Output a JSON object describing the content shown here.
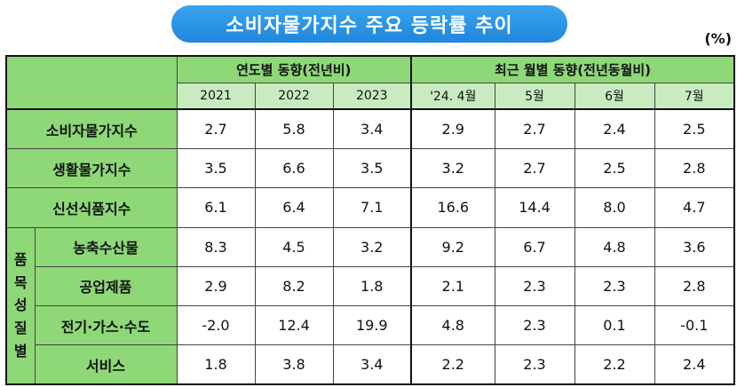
{
  "title": "소비자물가지수 주요 등락률 추이",
  "unit": "(%)",
  "header": {
    "group_annual": "연도별 동향(전년비)",
    "group_monthly": "최근 월별 동향(전년동월비)",
    "group_vertical": "품목성질별"
  },
  "chart_data": {
    "type": "table",
    "title": "소비자물가지수 주요 등락률 추이",
    "unit": "(%)",
    "columns": [
      "2021",
      "2022",
      "2023",
      "'24. 4월",
      "5월",
      "6월",
      "7월"
    ],
    "rows": [
      {
        "label": "소비자물가지수",
        "values": [
          "2.7",
          "5.8",
          "3.4",
          "2.9",
          "2.7",
          "2.4",
          "2.5"
        ]
      },
      {
        "label": "생활물가지수",
        "values": [
          "3.5",
          "6.6",
          "3.5",
          "3.2",
          "2.7",
          "2.5",
          "2.8"
        ]
      },
      {
        "label": "신선식품지수",
        "values": [
          "6.1",
          "6.4",
          "7.1",
          "16.6",
          "14.4",
          "8.0",
          "4.7"
        ]
      },
      {
        "label": "농축수산물",
        "values": [
          "8.3",
          "4.5",
          "3.2",
          "9.2",
          "6.7",
          "4.8",
          "3.6"
        ]
      },
      {
        "label": "공업제품",
        "values": [
          "2.9",
          "8.2",
          "1.8",
          "2.1",
          "2.3",
          "2.3",
          "2.8"
        ]
      },
      {
        "label": "전기·가스·수도",
        "values": [
          "-2.0",
          "12.4",
          "19.9",
          "4.8",
          "2.3",
          "0.1",
          "-0.1"
        ]
      },
      {
        "label": "서비스",
        "values": [
          "1.8",
          "3.8",
          "3.4",
          "2.2",
          "2.3",
          "2.2",
          "2.4"
        ]
      }
    ]
  }
}
